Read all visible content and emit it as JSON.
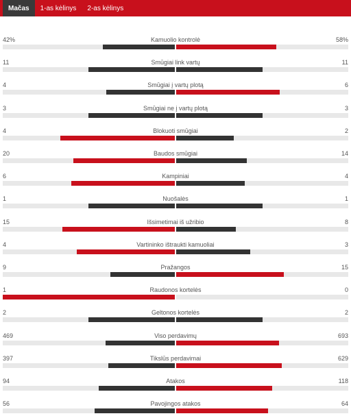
{
  "tabs": [
    {
      "label": "Mačas",
      "active": true
    },
    {
      "label": "1-as kėlinys",
      "active": false
    },
    {
      "label": "2-as kėlinys",
      "active": false
    }
  ],
  "colors": {
    "accent": "#c8101c",
    "dark": "#333333",
    "track": "#e8e8e8"
  },
  "stats": [
    {
      "label": "Kamuolio kontrolė",
      "left": "42%",
      "right": "58%",
      "lf": 0.42,
      "rf": 0.58,
      "lc": "dark",
      "rc": "red"
    },
    {
      "label": "Smūgiai link vartų",
      "left": "11",
      "right": "11",
      "lf": 0.5,
      "rf": 0.5,
      "lc": "dark",
      "rc": "dark"
    },
    {
      "label": "Smūgiai į vartų plotą",
      "left": "4",
      "right": "6",
      "lf": 0.4,
      "rf": 0.6,
      "lc": "dark",
      "rc": "red"
    },
    {
      "label": "Smūgiai ne į vartų plotą",
      "left": "3",
      "right": "3",
      "lf": 0.5,
      "rf": 0.5,
      "lc": "dark",
      "rc": "dark"
    },
    {
      "label": "Blokuoti smūgiai",
      "left": "4",
      "right": "2",
      "lf": 0.667,
      "rf": 0.333,
      "lc": "red",
      "rc": "dark"
    },
    {
      "label": "Baudos smūgiai",
      "left": "20",
      "right": "14",
      "lf": 0.588,
      "rf": 0.412,
      "lc": "red",
      "rc": "dark"
    },
    {
      "label": "Kampiniai",
      "left": "6",
      "right": "4",
      "lf": 0.6,
      "rf": 0.4,
      "lc": "red",
      "rc": "dark"
    },
    {
      "label": "Nuošalės",
      "left": "1",
      "right": "1",
      "lf": 0.5,
      "rf": 0.5,
      "lc": "dark",
      "rc": "dark"
    },
    {
      "label": "Išsimetimai iš užribio",
      "left": "15",
      "right": "8",
      "lf": 0.652,
      "rf": 0.348,
      "lc": "red",
      "rc": "dark"
    },
    {
      "label": "Vartininko ištraukti kamuoliai",
      "left": "4",
      "right": "3",
      "lf": 0.571,
      "rf": 0.429,
      "lc": "red",
      "rc": "dark"
    },
    {
      "label": "Pražangos",
      "left": "9",
      "right": "15",
      "lf": 0.375,
      "rf": 0.625,
      "lc": "dark",
      "rc": "red"
    },
    {
      "label": "Raudonos kortelės",
      "left": "1",
      "right": "0",
      "lf": 1.0,
      "rf": 0.0,
      "lc": "red",
      "rc": "dark"
    },
    {
      "label": "Geltonos kortelės",
      "left": "2",
      "right": "2",
      "lf": 0.5,
      "rf": 0.5,
      "lc": "dark",
      "rc": "dark"
    },
    {
      "label": "Viso perdavimų",
      "left": "469",
      "right": "693",
      "lf": 0.404,
      "rf": 0.596,
      "lc": "dark",
      "rc": "red"
    },
    {
      "label": "Tikslūs perdavimai",
      "left": "397",
      "right": "629",
      "lf": 0.387,
      "rf": 0.613,
      "lc": "dark",
      "rc": "red"
    },
    {
      "label": "Atakos",
      "left": "94",
      "right": "118",
      "lf": 0.443,
      "rf": 0.557,
      "lc": "dark",
      "rc": "red"
    },
    {
      "label": "Pavojingos atakos",
      "left": "56",
      "right": "64",
      "lf": 0.467,
      "rf": 0.533,
      "lc": "dark",
      "rc": "red"
    }
  ]
}
